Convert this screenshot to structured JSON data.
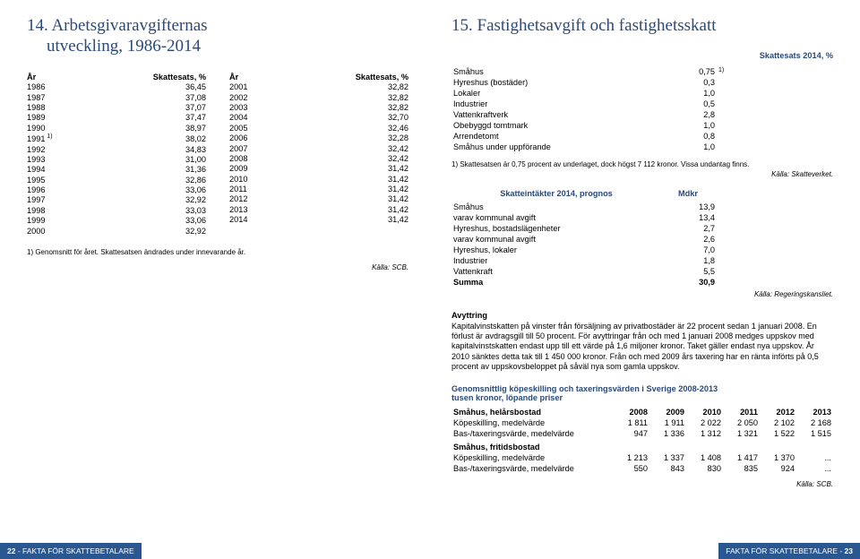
{
  "left": {
    "title_line1": "14. Arbetsgivaravgifternas",
    "title_line2": "utveckling, 1986-2014",
    "col1": {
      "h_year": "År",
      "h_val": "Skattesats, %",
      "rows": [
        {
          "y": "1986",
          "v": "36,45"
        },
        {
          "y": "1987",
          "v": "37,08"
        },
        {
          "y": "1988",
          "v": "37,07"
        },
        {
          "y": "1989",
          "v": "37,47"
        },
        {
          "y": "1990",
          "v": "38,97"
        },
        {
          "y": "1991",
          "v": "38,02",
          "n": "1)"
        },
        {
          "y": "1992",
          "v": "34,83"
        },
        {
          "y": "1993",
          "v": "31,00"
        },
        {
          "y": "1994",
          "v": "31,36"
        },
        {
          "y": "1995",
          "v": "32,86"
        },
        {
          "y": "1996",
          "v": "33,06"
        },
        {
          "y": "1997",
          "v": "32,92"
        },
        {
          "y": "1998",
          "v": "33,03"
        },
        {
          "y": "1999",
          "v": "33,06"
        },
        {
          "y": "2000",
          "v": "32,92"
        }
      ]
    },
    "col2": {
      "h_year": "År",
      "h_val": "Skattesats, %",
      "rows": [
        {
          "y": "2001",
          "v": "32,82"
        },
        {
          "y": "2002",
          "v": "32,82"
        },
        {
          "y": "2003",
          "v": "32,82"
        },
        {
          "y": "2004",
          "v": "32,70"
        },
        {
          "y": "2005",
          "v": "32,46"
        },
        {
          "y": "2006",
          "v": "32,28"
        },
        {
          "y": "2007",
          "v": "32,42"
        },
        {
          "y": "2008",
          "v": "32,42"
        },
        {
          "y": "2009",
          "v": "31,42"
        },
        {
          "y": "2010",
          "v": "31,42"
        },
        {
          "y": "2011",
          "v": "31,42"
        },
        {
          "y": "2012",
          "v": "31,42"
        },
        {
          "y": "2013",
          "v": "31,42"
        },
        {
          "y": "2014",
          "v": "31,42"
        }
      ]
    },
    "footnote": "1) Genomsnitt för året. Skattesatsen ändrades under innevarande år.",
    "source": "Källa: SCB.",
    "footer_page": "22",
    "footer_text": " - FAKTA FÖR SKATTEBETALARE"
  },
  "right": {
    "title": "15. Fastighetsavgift och fastighetsskatt",
    "subhead": "Skattesats 2014, %",
    "kv": [
      {
        "k": "Småhus",
        "v": "0,75",
        "n": "1)"
      },
      {
        "k": "Hyreshus (bostäder)",
        "v": "0,3"
      },
      {
        "k": "Lokaler",
        "v": "1,0"
      },
      {
        "k": "Industrier",
        "v": "0,5"
      },
      {
        "k": "Vattenkraftverk",
        "v": "2,8"
      },
      {
        "k": "Obebyggd tomtmark",
        "v": "1,0"
      },
      {
        "k": "Arrendetomt",
        "v": "0,8"
      },
      {
        "k": "Småhus under uppförande",
        "v": "1,0"
      }
    ],
    "kv_footnote": "1) Skattesatsen är 0,75 procent av underlaget, dock högst 7 112 kronor. Vissa undantag finns.",
    "kv_source": "Källa: Skatteverket.",
    "prog_head_k": "Skatteintäkter 2014, prognos",
    "prog_head_v": "Mdkr",
    "prog": [
      {
        "k": "Småhus",
        "v": "13,9"
      },
      {
        "k": "varav kommunal avgift",
        "v": "13,4"
      },
      {
        "k": "Hyreshus, bostadslägenheter",
        "v": "2,7"
      },
      {
        "k": "varav kommunal avgift",
        "v": "2,6"
      },
      {
        "k": "Hyreshus, lokaler",
        "v": "7,0"
      },
      {
        "k": "Industrier",
        "v": "1,8"
      },
      {
        "k": "Vattenkraft",
        "v": "5,5"
      }
    ],
    "prog_sum_k": "Summa",
    "prog_sum_v": "30,9",
    "prog_source": "Källa: Regeringskansliet.",
    "avy_head": "Avyttring",
    "avy_body": "Kapitalvinstskatten på vinster från försäljning av privatbostäder är 22 procent sedan 1 januari 2008. En förlust är avdragsgill till 50 procent. För avyttringar från och med 1 januari 2008 medges uppskov med kapitalvinstskatten endast upp till ett värde på 1,6 miljoner kronor. Taket gäller endast nya uppskov. År 2010 sänktes detta tak till 1 450 000 kronor. Från och med 2009 års taxering har en ränta införts på 0,5 procent av uppskovsbeloppet på såväl nya som gamla uppskov.",
    "kop_head1": "Genomsnittlig köpeskilling och taxeringsvärden i Sverige 2008-2013",
    "kop_head2": "tusen kronor, löpande priser",
    "wide": {
      "head_label": "Småhus, helårsbostad",
      "years": [
        "2008",
        "2009",
        "2010",
        "2011",
        "2012",
        "2013"
      ],
      "rows1": [
        {
          "lbl": "Köpeskilling, medelvärde",
          "v": [
            "1 811",
            "1 911",
            "2 022",
            "2 050",
            "2 102",
            "2 168"
          ]
        },
        {
          "lbl": "Bas-/taxeringsvärde, medelvärde",
          "v": [
            "947",
            "1 336",
            "1 312",
            "1 321",
            "1 522",
            "1 515"
          ]
        }
      ],
      "section2": "Småhus, fritidsbostad",
      "rows2": [
        {
          "lbl": "Köpeskilling, medelvärde",
          "v": [
            "1 213",
            "1 337",
            "1 408",
            "1 417",
            "1 370",
            "..."
          ]
        },
        {
          "lbl": "Bas-/taxeringsvärde, medelvärde",
          "v": [
            "550",
            "843",
            "830",
            "835",
            "924",
            "..."
          ]
        }
      ]
    },
    "wide_source": "Källa: SCB.",
    "footer_text": "FAKTA FÖR SKATTEBETALARE - ",
    "footer_page": "23"
  }
}
